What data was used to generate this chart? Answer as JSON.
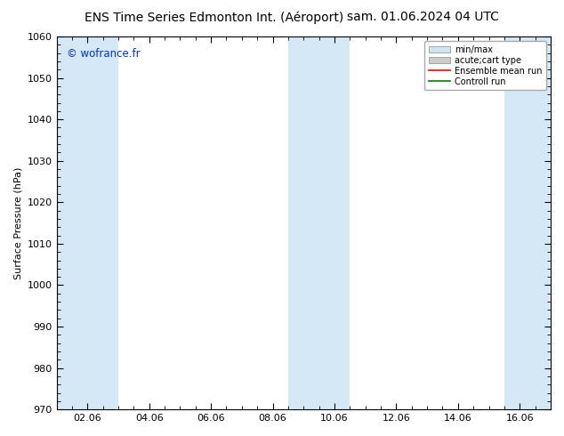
{
  "title_left": "ENS Time Series Edmonton Int. (Aéroport)",
  "title_right": "sam. 01.06.2024 04 UTC",
  "ylabel": "Surface Pressure (hPa)",
  "ylim": [
    970,
    1060
  ],
  "yticks": [
    970,
    980,
    990,
    1000,
    1010,
    1020,
    1030,
    1040,
    1050,
    1060
  ],
  "xtick_labels": [
    "02.06",
    "04.06",
    "06.06",
    "08.06",
    "10.06",
    "12.06",
    "14.06",
    "16.06"
  ],
  "xtick_positions": [
    1,
    3,
    5,
    7,
    9,
    11,
    13,
    15
  ],
  "xlim": [
    0,
    16
  ],
  "watermark": "© wofrance.fr",
  "background_color": "#ffffff",
  "plot_bg_color": "#ffffff",
  "band_color": "#d5e8f5",
  "shaded_bands": [
    {
      "x_start": 0.0,
      "x_end": 2.0
    },
    {
      "x_start": 7.5,
      "x_end": 9.5
    },
    {
      "x_start": 14.5,
      "x_end": 16.0
    }
  ],
  "legend_items": [
    {
      "label": "min/max",
      "color": "#d0e4f0",
      "type": "patch"
    },
    {
      "label": "acute;cart type",
      "color": "#cccccc",
      "type": "patch"
    },
    {
      "label": "Ensemble mean run",
      "color": "red",
      "type": "line"
    },
    {
      "label": "Controll run",
      "color": "green",
      "type": "line"
    }
  ],
  "title_fontsize": 10,
  "axis_fontsize": 8,
  "tick_fontsize": 8,
  "watermark_color": "#0033cc"
}
